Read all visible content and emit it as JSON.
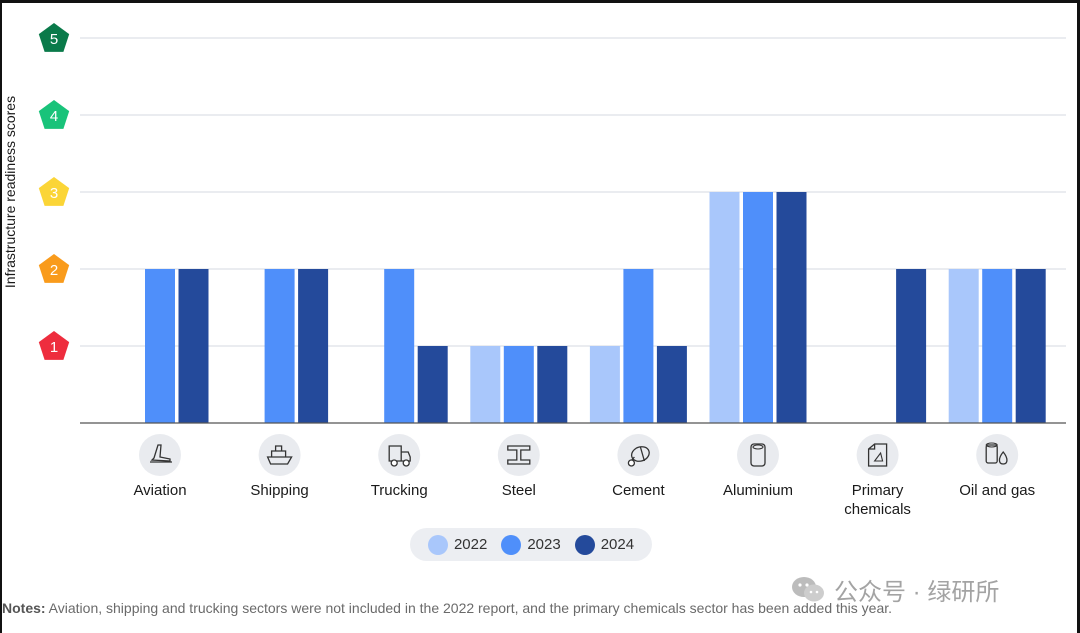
{
  "chart_data": {
    "type": "bar",
    "ylabel": "Infrastructure readiness scores",
    "ylim": [
      0,
      5
    ],
    "yticks": [
      1,
      2,
      3,
      4,
      5
    ],
    "ytick_colors": [
      "#ee2d3e",
      "#f99b1c",
      "#fbd537",
      "#19c37a",
      "#0a7a4a"
    ],
    "categories": [
      {
        "label": "Aviation",
        "lines": [
          "Aviation"
        ],
        "icon": "airplane-icon"
      },
      {
        "label": "Shipping",
        "lines": [
          "Shipping"
        ],
        "icon": "ship-icon"
      },
      {
        "label": "Trucking",
        "lines": [
          "Trucking"
        ],
        "icon": "truck-icon"
      },
      {
        "label": "Steel",
        "lines": [
          "Steel"
        ],
        "icon": "steel-beam-icon"
      },
      {
        "label": "Cement",
        "lines": [
          "Cement"
        ],
        "icon": "cement-mixer-icon"
      },
      {
        "label": "Aluminium",
        "lines": [
          "Aluminium"
        ],
        "icon": "aluminium-can-icon"
      },
      {
        "label": "Primary chemicals",
        "lines": [
          "Primary",
          "chemicals"
        ],
        "icon": "chemical-container-icon"
      },
      {
        "label": "Oil and gas",
        "lines": [
          "Oil and gas"
        ],
        "icon": "oil-barrel-icon"
      }
    ],
    "series": [
      {
        "name": "2022",
        "color": "#a9c7fb",
        "values": [
          null,
          null,
          null,
          1,
          1,
          3,
          null,
          2
        ]
      },
      {
        "name": "2023",
        "color": "#4f8ffa",
        "values": [
          2,
          2,
          2,
          1,
          2,
          3,
          null,
          2
        ]
      },
      {
        "name": "2024",
        "color": "#244a9b",
        "values": [
          2,
          2,
          1,
          1,
          1,
          3,
          2,
          2
        ]
      }
    ],
    "legend": {
      "position": "bottom-center"
    },
    "grid": true
  },
  "notes": {
    "label": "Notes:",
    "text": " Aviation, shipping and trucking sectors were not included in the 2022 report, and the primary chemicals sector has been added this year."
  },
  "watermark": {
    "text": "公众号 · 绿研所"
  }
}
